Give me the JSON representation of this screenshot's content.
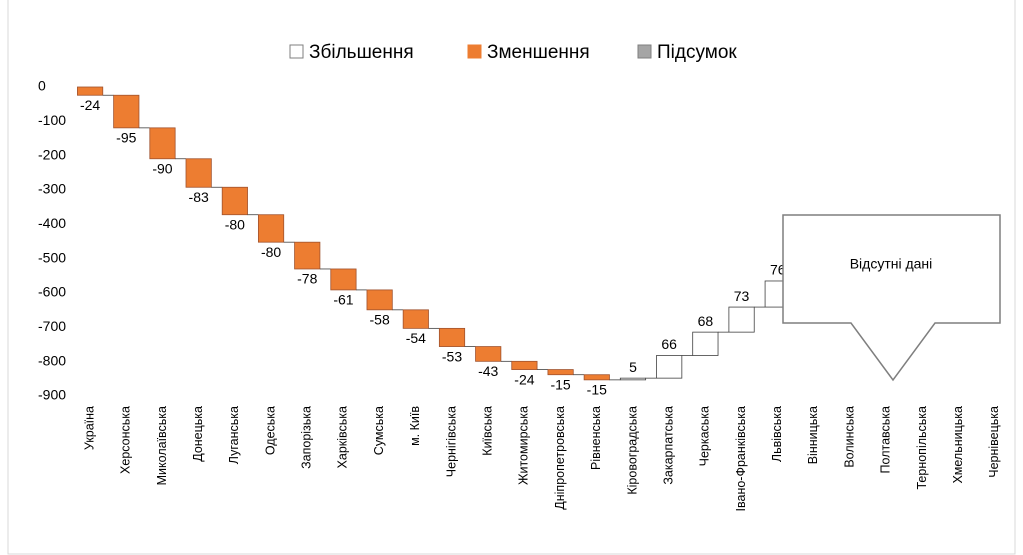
{
  "chart_data": {
    "type": "waterfall",
    "legend": [
      {
        "name": "Збільшення",
        "color": "#ffffff"
      },
      {
        "name": "Зменшення",
        "color": "#ed7d31"
      },
      {
        "name": "Підсумок",
        "color": "#a5a5a5"
      }
    ],
    "categories": [
      "Україна",
      "Херсонська",
      "Миколаївська",
      "Донецька",
      "Луганська",
      "Одеська",
      "Запорізька",
      "Харківська",
      "Сумська",
      "м. Київ",
      "Чернігівська",
      "Київська",
      "Житомирська",
      "Дніпропетровська",
      "Рівненська",
      "Кіровоградська",
      "Закарпатська",
      "Черкаська",
      "Івано-Франківська",
      "Львівська",
      "Вінницька",
      "Волинська",
      "Полтавська",
      "Тернопільська",
      "Хмельницька",
      "Чернівецька"
    ],
    "values": [
      -24,
      -95,
      -90,
      -83,
      -80,
      -80,
      -78,
      -61,
      -58,
      -54,
      -53,
      -43,
      -24,
      -15,
      -15,
      5,
      66,
      68,
      73,
      76,
      null,
      null,
      null,
      null,
      null,
      null
    ],
    "ylim": [
      -900,
      0
    ],
    "yticks": [
      0,
      -100,
      -200,
      -300,
      -400,
      -500,
      -600,
      -700,
      -800,
      -900
    ],
    "callout": "Відсутні дані"
  }
}
